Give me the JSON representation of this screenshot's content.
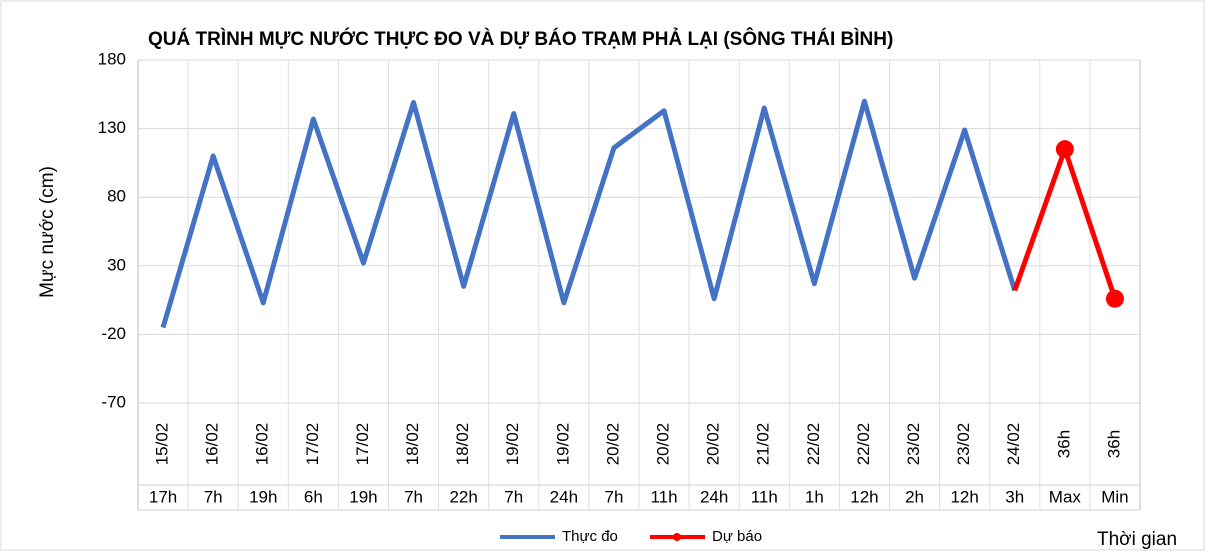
{
  "chart_data": {
    "type": "line",
    "title": "QUÁ TRÌNH MỰC NƯỚC THỰC ĐO VÀ DỰ BÁO TRẠM PHẢ LẠI (SÔNG THÁI BÌNH)",
    "y_label": "Mực nước (cm)",
    "x_label": "Thời gian",
    "categories": [
      [
        "15/02",
        "17h"
      ],
      [
        "16/02",
        "7h"
      ],
      [
        "16/02",
        "19h"
      ],
      [
        "17/02",
        "6h"
      ],
      [
        "17/02",
        "19h"
      ],
      [
        "18/02",
        "7h"
      ],
      [
        "18/02",
        "22h"
      ],
      [
        "19/02",
        "7h"
      ],
      [
        "19/02",
        "24h"
      ],
      [
        "20/02",
        "7h"
      ],
      [
        "20/02",
        "11h"
      ],
      [
        "20/02",
        "24h"
      ],
      [
        "21/02",
        "11h"
      ],
      [
        "22/02",
        "1h"
      ],
      [
        "22/02",
        "12h"
      ],
      [
        "23/02",
        "2h"
      ],
      [
        "23/02",
        "12h"
      ],
      [
        "24/02",
        "3h"
      ],
      [
        "36h",
        "Max"
      ],
      [
        "36h",
        "Min"
      ]
    ],
    "series": [
      {
        "name": "Thực đo",
        "color": "#4472c4",
        "values": [
          -15,
          110,
          3,
          137,
          32,
          149,
          15,
          141,
          3,
          116,
          143,
          6,
          145,
          17,
          150,
          21,
          129,
          12,
          null,
          null
        ]
      },
      {
        "name": "Dự báo",
        "color": "#ff0000",
        "values": [
          null,
          null,
          null,
          null,
          null,
          null,
          null,
          null,
          null,
          null,
          null,
          null,
          null,
          null,
          null,
          null,
          null,
          12,
          115,
          6
        ]
      }
    ],
    "ylim": [
      -70,
      180
    ],
    "yticks": [
      -70,
      -20,
      30,
      80,
      130,
      180
    ],
    "grid": true,
    "legend": "bottom"
  }
}
